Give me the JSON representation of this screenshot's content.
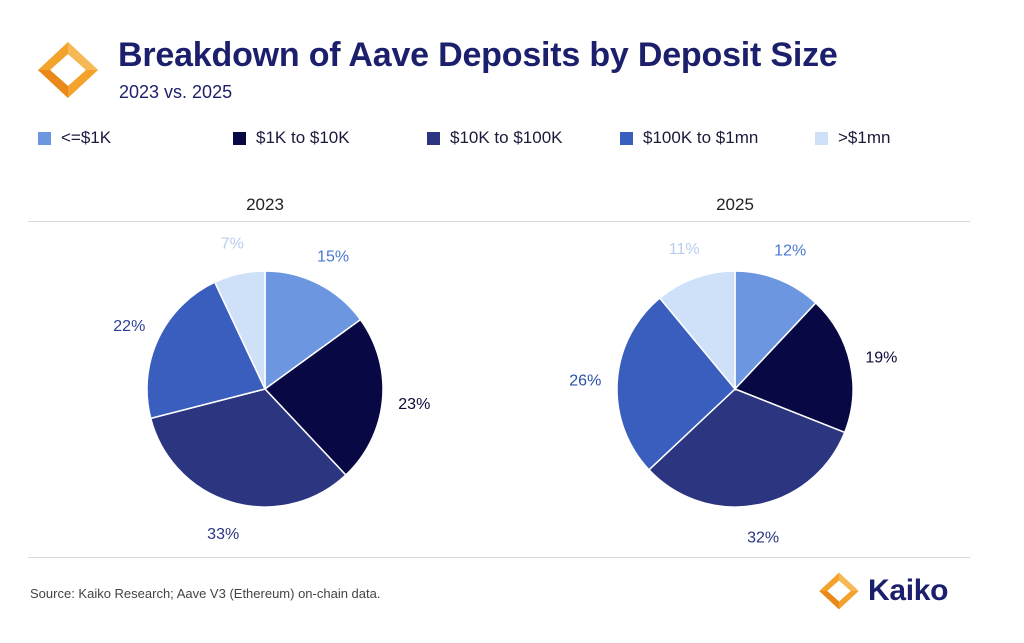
{
  "header": {
    "title": "Breakdown of Aave Deposits by Deposit Size",
    "subtitle": "2023 vs. 2025"
  },
  "legend": [
    {
      "label": "<=$1K",
      "color": "#6c97e0"
    },
    {
      "label": "$1K to $10K",
      "color": "#080845"
    },
    {
      "label": "$10K to $100K",
      "color": "#2b3580"
    },
    {
      "label": "$100K to $1mn",
      "color": "#3a5ebd"
    },
    {
      "label": ">$1mn",
      "color": "#cfe1f8"
    }
  ],
  "chart_data": [
    {
      "type": "pie",
      "title": "2023",
      "categories": [
        "<=$1K",
        "$1K to $10K",
        "$10K to $100K",
        "$100K to $1mn",
        ">$1mn"
      ],
      "values": [
        15,
        23,
        33,
        22,
        7
      ],
      "labels": [
        "15%",
        "23%",
        "33%",
        "22%",
        "7%"
      ],
      "colors": [
        "#6c97e0",
        "#080845",
        "#2b3580",
        "#3a5ebd",
        "#cfe1f8"
      ]
    },
    {
      "type": "pie",
      "title": "2025",
      "categories": [
        "<=$1K",
        "$1K to $10K",
        "$10K to $100K",
        "$100K to $1mn",
        ">$1mn"
      ],
      "values": [
        12,
        19,
        32,
        26,
        11
      ],
      "labels": [
        "12%",
        "19%",
        "32%",
        "26%",
        "11%"
      ],
      "colors": [
        "#6c97e0",
        "#080845",
        "#2b3580",
        "#3a5ebd",
        "#cfe1f8"
      ]
    }
  ],
  "footer": {
    "source": "Source: Kaiko Research; Aave V3 (Ethereum) on-chain data.",
    "brand": "Kaiko"
  },
  "icons": {
    "logo": "kaiko-logo-icon",
    "brand_mark": "kaiko-mark-icon"
  },
  "brand_colors": {
    "orange": "#f3a22b",
    "navy": "#1c1f6b"
  }
}
